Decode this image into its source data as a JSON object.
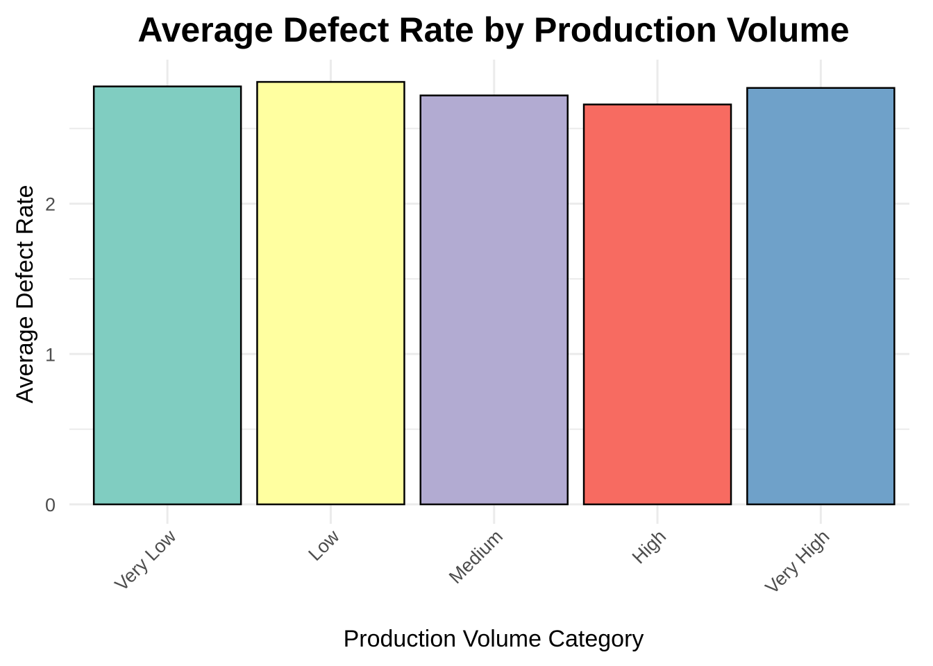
{
  "chart_data": {
    "type": "bar",
    "title": "Average Defect Rate by Production Volume",
    "xlabel": "Production Volume Category",
    "ylabel": "Average Defect Rate",
    "categories": [
      "Very Low",
      "Low",
      "Medium",
      "High",
      "Very High"
    ],
    "values": [
      2.78,
      2.81,
      2.72,
      2.66,
      2.77
    ],
    "colors": [
      "#80CDC1",
      "#FFFFA0",
      "#B2ABD2",
      "#F76B61",
      "#6FA1C9"
    ],
    "ylim": [
      0,
      2.94
    ],
    "yticks": [
      0,
      1,
      2
    ],
    "ytick_labels": [
      "0",
      "1",
      "2"
    ],
    "y_minor_ticks": [
      0.5,
      1.5,
      2.5
    ],
    "grid": true,
    "legend": "none"
  }
}
